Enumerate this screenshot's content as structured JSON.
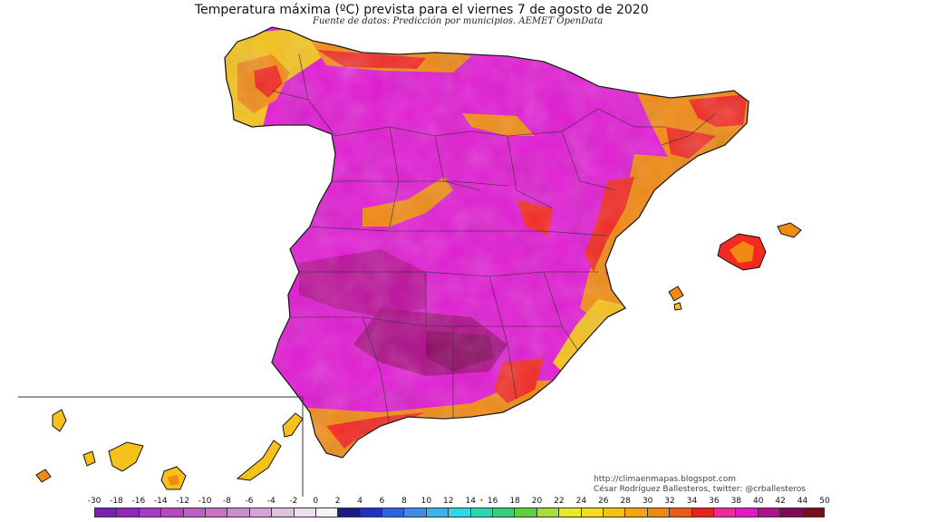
{
  "header": {
    "title": "Temperatura máxima (ºC) prevista para el viernes 7 de agosto de 2020",
    "subtitle": "Fuente de datos: Predicción por municipios. AEMET OpenData"
  },
  "credits": {
    "url": "http://climaenmapas.blogspot.com",
    "author": "César Rodríguez Ballesteros, twitter: @crballesteros"
  },
  "legend": {
    "labels": [
      "-30",
      "-18",
      "-16",
      "-14",
      "-12",
      "-10",
      "-8",
      "-6",
      "-4",
      "-2",
      "0",
      "2",
      "4",
      "6",
      "8",
      "10",
      "12",
      "14",
      "16",
      "18",
      "20",
      "22",
      "24",
      "26",
      "28",
      "30",
      "32",
      "34",
      "36",
      "38",
      "40",
      "42",
      "44",
      "50"
    ],
    "colors": [
      "#7a1fb5",
      "#9326c2",
      "#a938c9",
      "#b947c4",
      "#c05ec3",
      "#c872c6",
      "#cf8bcd",
      "#d7a3d5",
      "#dfc0df",
      "#ebe0eb",
      "#f4f4f4",
      "#1a1a8a",
      "#1f32c8",
      "#2f62e8",
      "#3c8cf0",
      "#36b4f2",
      "#2ed8e6",
      "#28d8b4",
      "#30d27a",
      "#5bd23c",
      "#a5e032",
      "#e8ea28",
      "#f6dc1e",
      "#f7c214",
      "#f7a40f",
      "#f3860c",
      "#ef5a12",
      "#e82418",
      "#ef2a9e",
      "#e418c8",
      "#b4108c",
      "#84085a",
      "#7a0c1c"
    ],
    "interval_markers": {
      "14-16": "•"
    }
  },
  "map": {
    "regions": [
      "Península",
      "Islas Baleares",
      "Islas Canarias"
    ],
    "palette": {
      "background_hot": "#e41dd6",
      "very_hot": "#b0108a",
      "hot_red": "#f22a22",
      "orange": "#f28a12",
      "yellow": "#f6c21a",
      "borders": "#1a1a1a"
    }
  }
}
